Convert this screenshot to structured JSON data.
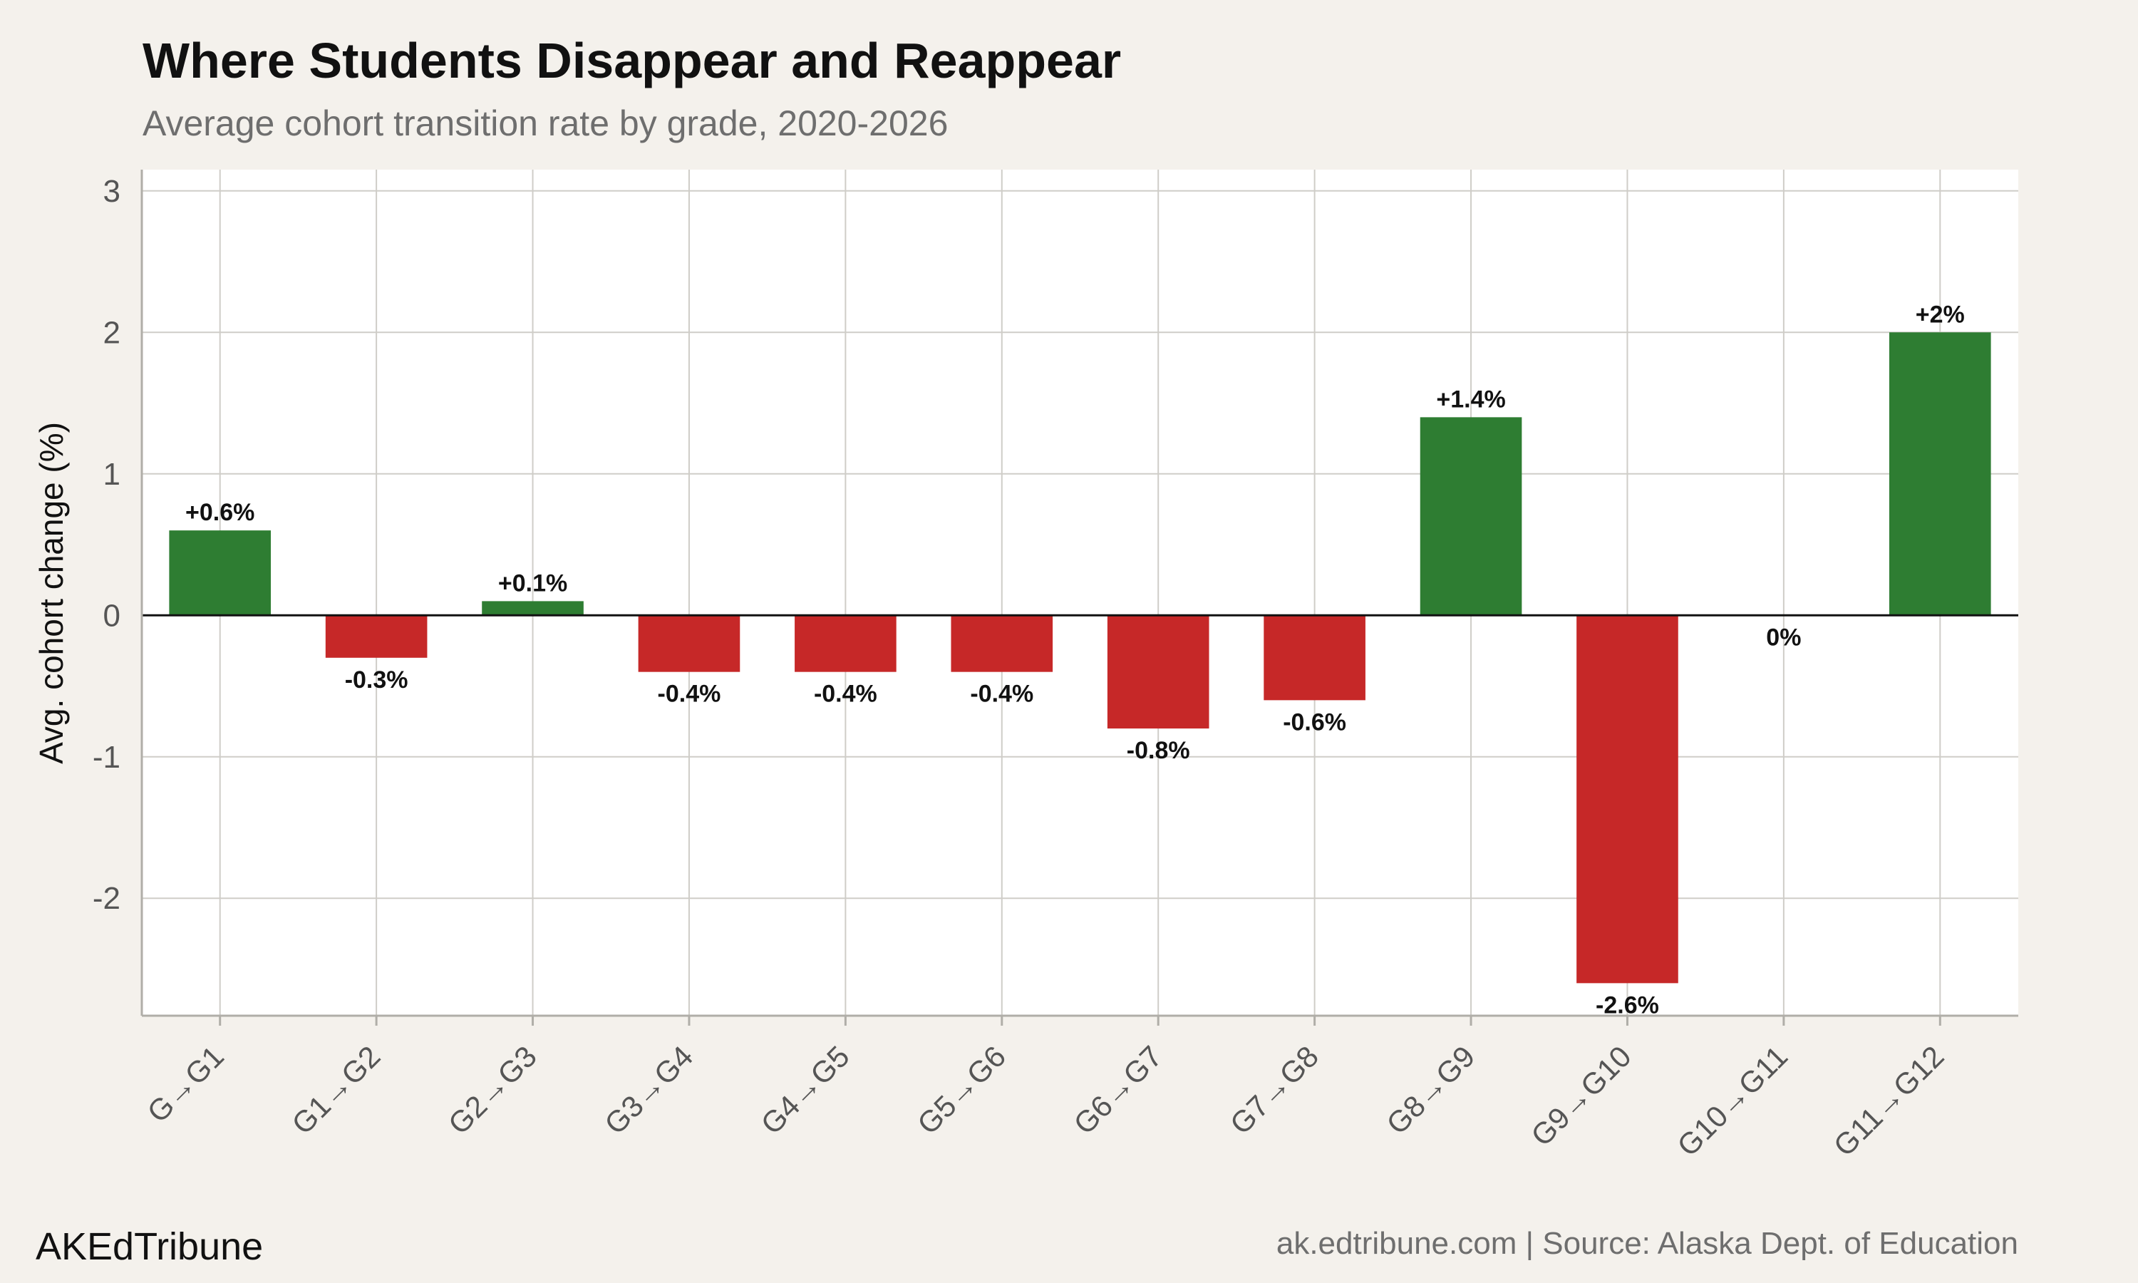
{
  "chart_data": {
    "type": "bar",
    "title": "Where Students Disappear and Reappear",
    "subtitle": "Average cohort transition rate by grade, 2020-2026",
    "ylabel": "Avg. cohort change (%)",
    "xlabel": "",
    "categories": [
      "G→G1",
      "G1→G2",
      "G2→G3",
      "G3→G4",
      "G4→G5",
      "G5→G6",
      "G6→G7",
      "G7→G8",
      "G8→G9",
      "G9→G10",
      "G10→G11",
      "G11→G12"
    ],
    "values": [
      0.6,
      -0.3,
      0.1,
      -0.4,
      -0.4,
      -0.4,
      -0.8,
      -0.6,
      1.4,
      -2.6,
      0,
      2
    ],
    "data_labels": [
      "+0.6%",
      "-0.3%",
      "+0.1%",
      "-0.4%",
      "-0.4%",
      "-0.4%",
      "-0.8%",
      "-0.6%",
      "+1.4%",
      "-2.6%",
      "0%",
      "+2%"
    ],
    "ylim": [
      -2.83,
      3.15
    ],
    "yticks": [
      3,
      2,
      1,
      0,
      -1,
      -2
    ],
    "grid": true,
    "legend": "none",
    "colors": {
      "positive": "#2e7d32",
      "negative": "#c62828",
      "panel": "#ffffff",
      "background": "#f4f1ec",
      "grid": "#cfcdc8",
      "zero_line": "#111111"
    }
  },
  "footer": {
    "brand": "AKEdTribune",
    "source": "ak.edtribune.com | Source: Alaska Dept. of Education"
  }
}
